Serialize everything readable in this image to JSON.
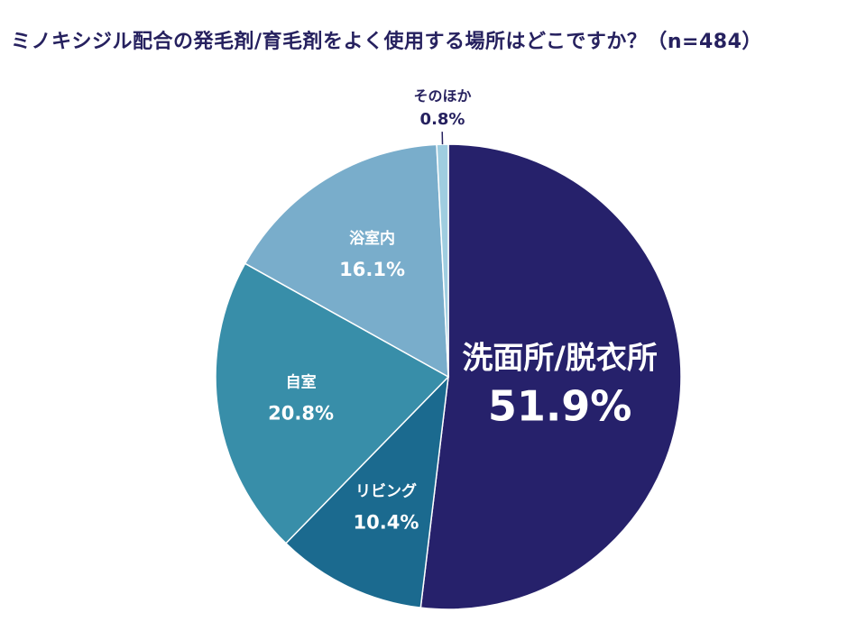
{
  "chart_data": {
    "type": "pie",
    "title": "ミノキシジル配合の発毛剤/育毛剤をよく使用する場所はどこですか？（n=484）",
    "categories": [
      "洗面所/脱衣所",
      "リビング",
      "自室",
      "浴室内",
      "そのほか"
    ],
    "values": [
      51.9,
      10.4,
      20.8,
      16.1,
      0.8
    ],
    "value_labels": [
      "51.9%",
      "10.4%",
      "20.8%",
      "16.1%",
      "0.8%"
    ],
    "unit": "%",
    "colors": [
      "#26216b",
      "#1b6a8f",
      "#388ea9",
      "#79adcb",
      "#9fcde0"
    ],
    "start": "12 o'clock",
    "direction": "clockwise"
  }
}
